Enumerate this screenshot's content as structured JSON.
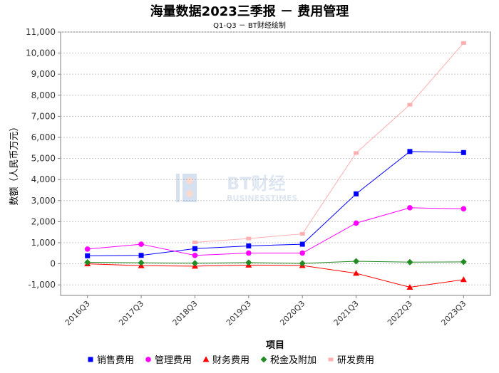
{
  "chart_data": {
    "type": "line",
    "title": "海量数据2023三季报 － 费用管理",
    "subtitle": "Q1-Q3 － BT财经绘制",
    "xlabel": "项目",
    "ylabel": "数额（人民币万元）",
    "categories": [
      "2016Q3",
      "2017Q3",
      "2018Q3",
      "2019Q3",
      "2020Q3",
      "2021Q3",
      "2022Q3",
      "2023Q3"
    ],
    "ylim": [
      -1500,
      11000
    ],
    "yticks": [
      -1000,
      0,
      1000,
      2000,
      3000,
      4000,
      5000,
      6000,
      7000,
      8000,
      9000,
      10000,
      11000
    ],
    "ytick_labels": [
      "-1,000",
      "0",
      "1,000",
      "2,000",
      "3,000",
      "4,000",
      "5,000",
      "6,000",
      "7,000",
      "8,000",
      "9,000",
      "10,000",
      "11,000"
    ],
    "grid": true,
    "legend_position": "bottom",
    "series": [
      {
        "name": "销售费用",
        "color": "#0000ff",
        "marker": "square",
        "values": [
          380,
          400,
          720,
          850,
          930,
          3320,
          5330,
          5280
        ]
      },
      {
        "name": "管理费用",
        "color": "#ff00ff",
        "marker": "circle",
        "values": [
          700,
          930,
          400,
          510,
          510,
          1930,
          2660,
          2610
        ]
      },
      {
        "name": "财务费用",
        "color": "#ff0000",
        "marker": "triangle",
        "values": [
          0,
          -90,
          -110,
          -60,
          -80,
          -450,
          -1110,
          -750
        ]
      },
      {
        "name": "税金及附加",
        "color": "#228b22",
        "marker": "diamond",
        "values": [
          70,
          50,
          30,
          60,
          20,
          120,
          80,
          90
        ]
      },
      {
        "name": "研发费用",
        "color": "#ffafaf",
        "marker": "rect",
        "values": [
          null,
          null,
          1020,
          1200,
          1420,
          5260,
          7550,
          10480
        ]
      }
    ]
  },
  "watermark": {
    "brand": "BT财经",
    "sub": "BUSINESSTIMES"
  }
}
